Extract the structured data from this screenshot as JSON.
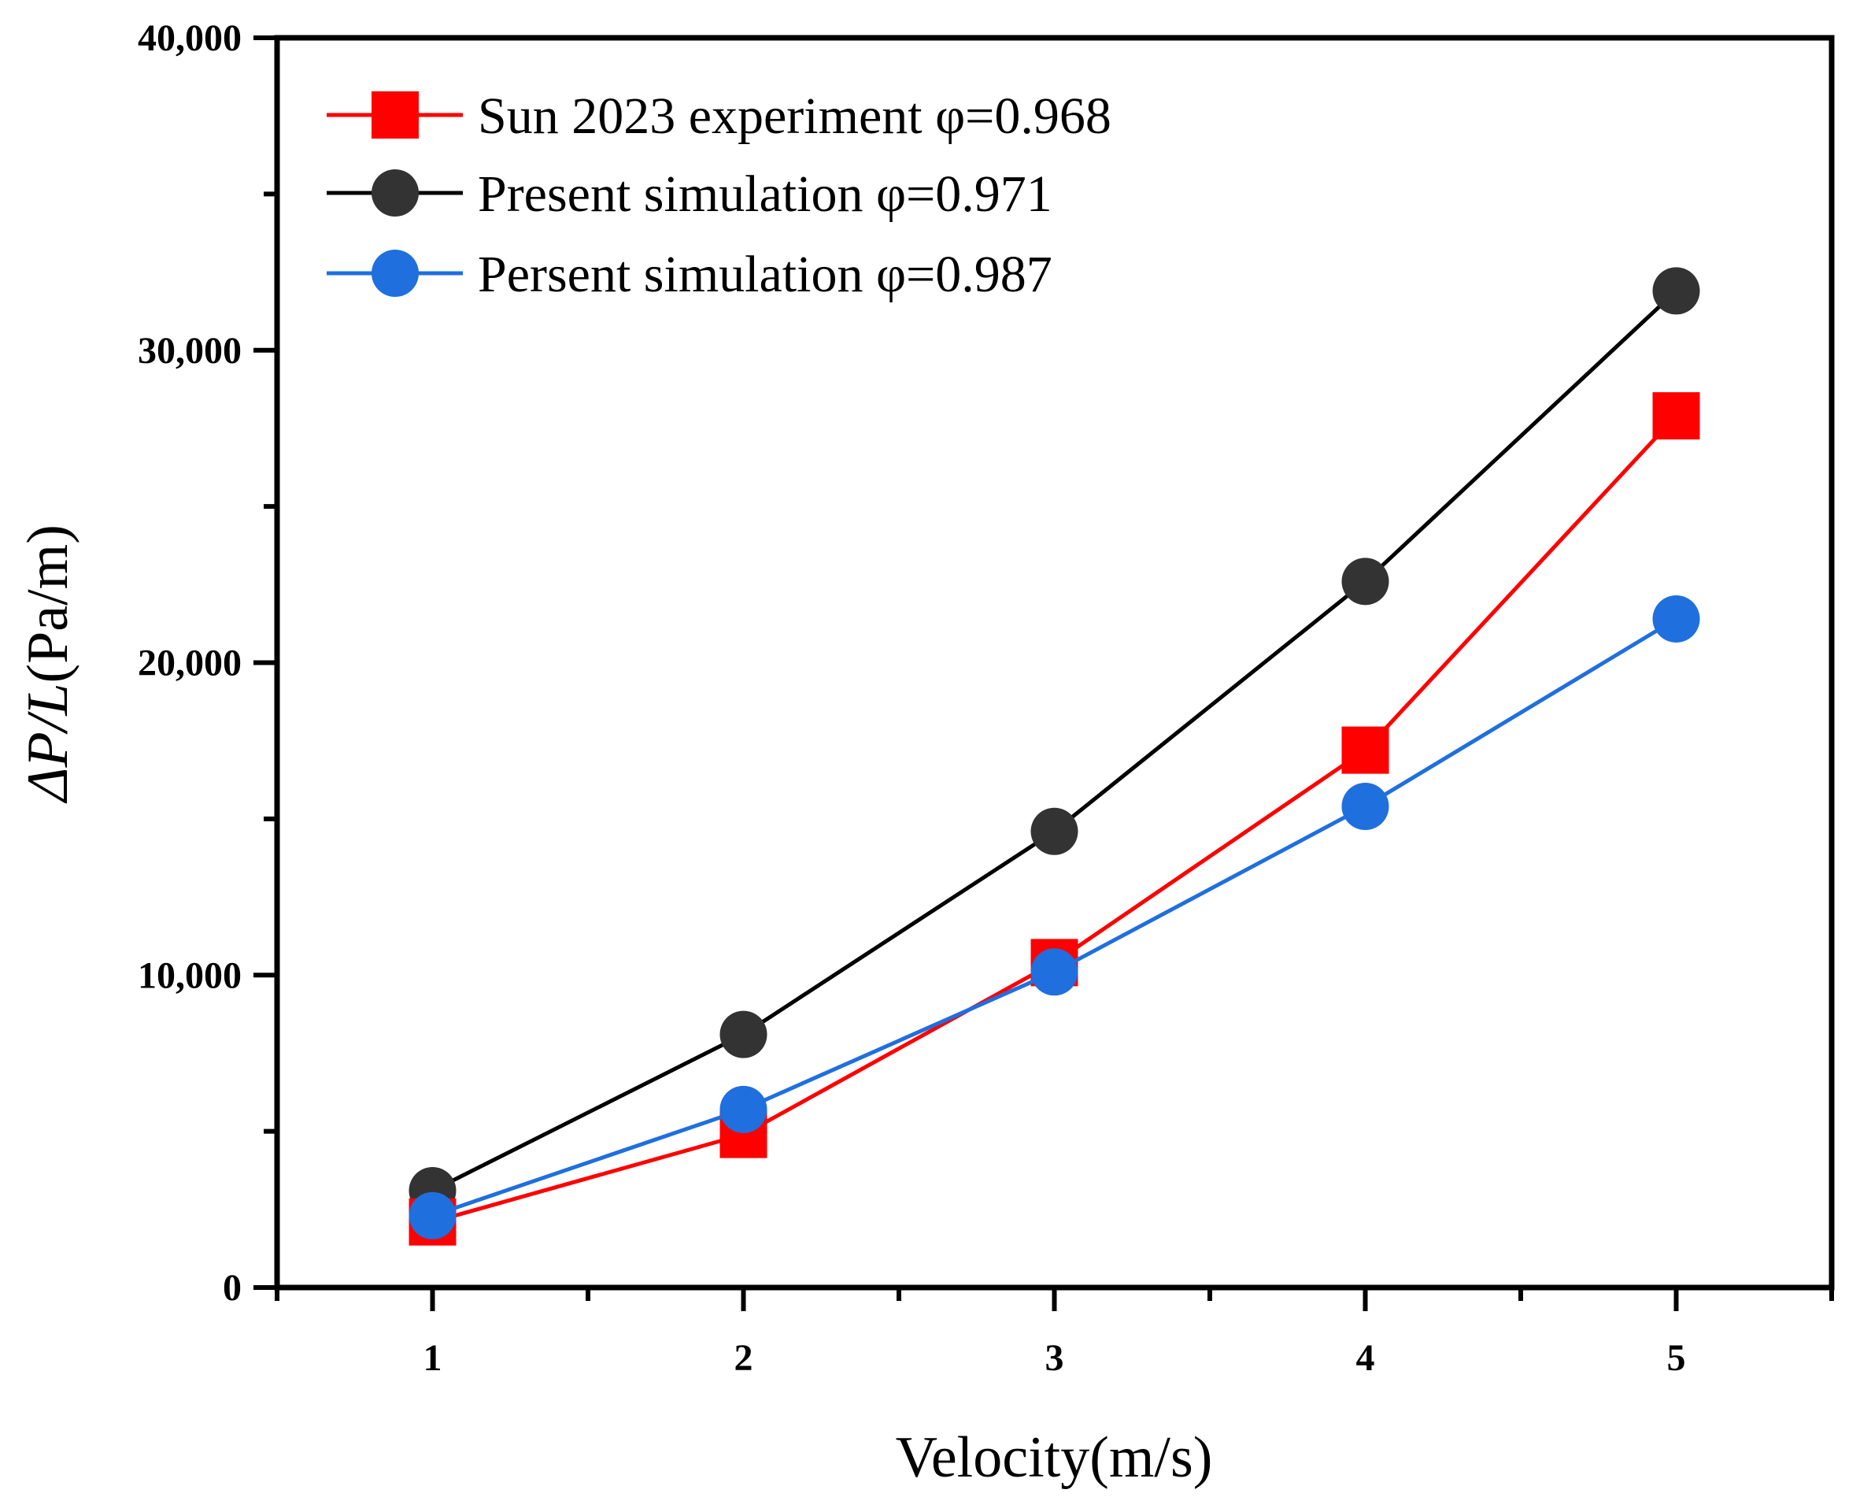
{
  "chart_data": {
    "type": "line",
    "title": "",
    "xlabel": "Velocity(m/s)",
    "ylabel": {
      "prefix": "ΔP/L",
      "unit": "(Pa/m)"
    },
    "x": [
      1,
      2,
      3,
      4,
      5
    ],
    "xlim": [
      0.5,
      5.5
    ],
    "ylim": [
      0,
      40000
    ],
    "x_ticks": [
      1,
      2,
      3,
      4,
      5
    ],
    "y_ticks": [
      0,
      10000,
      20000,
      30000,
      40000
    ],
    "y_tick_labels": [
      "0",
      "10,000",
      "20,000",
      "30,000",
      "40,000"
    ],
    "grid": false,
    "legend_position": "top-left",
    "series": [
      {
        "name": "Sun 2023 experiment φ=0.968",
        "color": "#ff0000",
        "marker": "square",
        "values": [
          2100,
          4900,
          10400,
          17200,
          27900
        ]
      },
      {
        "name": "Present simulation  φ=0.971",
        "color": "#000000",
        "marker_color": "#333333",
        "marker": "circle",
        "values": [
          3100,
          8100,
          14600,
          22600,
          31900
        ]
      },
      {
        "name": "Persent simulation  φ=0.987",
        "color": "#1f6fde",
        "marker": "circle",
        "values": [
          2300,
          5700,
          10100,
          15400,
          21400
        ]
      }
    ]
  }
}
